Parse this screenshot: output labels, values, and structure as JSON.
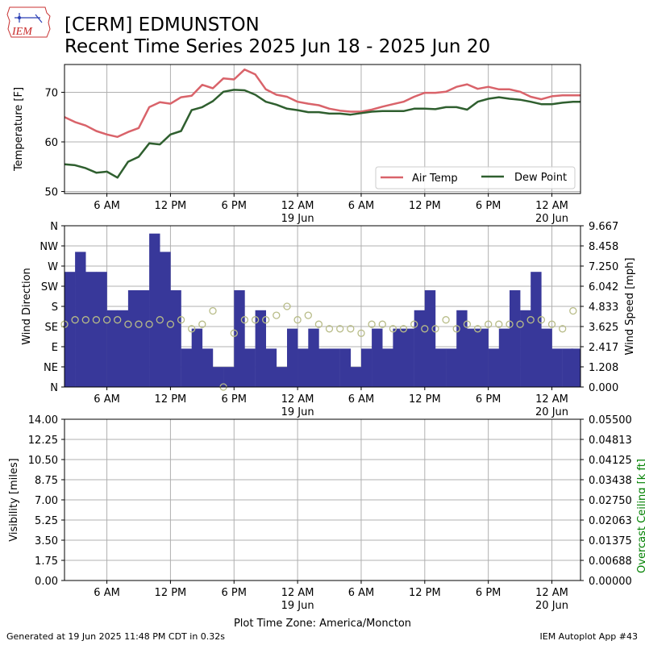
{
  "title_line1": "[CERM] EDMUNSTON",
  "title_line2": "Recent Time Series 2025 Jun 18 - 2025 Jun 20",
  "logo_text": "IEM",
  "footer_left": "Generated at 19 Jun 2025 11:48 PM CDT in 0.32s",
  "footer_right": "IEM Autoplot App #43",
  "colors": {
    "air_temp": "#d9636a",
    "dew_point": "#2f5f2f",
    "wind_speed_bar": "#38389a",
    "wind_dir_marker": "#b8bc88",
    "ceiling_label": "#008000",
    "grid": "#b0b0b0"
  },
  "chart_data": [
    {
      "type": "line",
      "ylabel": "Temperature [F]",
      "ylim": [
        49.6,
        75.6
      ],
      "yticks": [
        "50",
        "60",
        "70"
      ],
      "xticks": [
        "6 AM",
        "12 PM",
        "6 PM",
        "12 AM",
        "6 AM",
        "12 PM",
        "6 PM",
        "12 AM"
      ],
      "xtick_sublabels": [
        "",
        "",
        "",
        "19 Jun",
        "",
        "",
        "",
        "20 Jun"
      ],
      "x_unit": "hours after 2025-06-18 00:00",
      "xlim": [
        2.0,
        50.7
      ],
      "grid": true,
      "legend_position": "lower-right",
      "series": [
        {
          "name": "Air Temp",
          "x": [
            2,
            3,
            4,
            5,
            6,
            7,
            8,
            9,
            10,
            11,
            12,
            13,
            14,
            15,
            16,
            17,
            18,
            19,
            20,
            21,
            22,
            23,
            24,
            25,
            26,
            27,
            28,
            29,
            30,
            31,
            32,
            33,
            34,
            35,
            36,
            37,
            38,
            39,
            40,
            41,
            42,
            43,
            44,
            45,
            46,
            47,
            48,
            49,
            50,
            50.7
          ],
          "values": [
            65,
            64,
            63.3,
            62.2,
            61.5,
            61,
            62,
            62.8,
            67,
            68,
            67.7,
            69,
            69.3,
            71.5,
            70.8,
            72.8,
            72.6,
            74.6,
            73.6,
            70.6,
            69.5,
            69.1,
            68.1,
            67.7,
            67.4,
            66.7,
            66.3,
            66.1,
            66.1,
            66.5,
            67.1,
            67.6,
            68.1,
            69.1,
            69.9,
            69.9,
            70.1,
            71.1,
            71.6,
            70.7,
            71.1,
            70.6,
            70.6,
            70.1,
            69.1,
            68.6,
            69.2,
            69.4,
            69.4,
            69.4
          ]
        },
        {
          "name": "Dew Point",
          "x": [
            2,
            3,
            4,
            5,
            6,
            7,
            8,
            9,
            10,
            11,
            12,
            13,
            14,
            15,
            16,
            17,
            18,
            19,
            20,
            21,
            22,
            23,
            24,
            25,
            26,
            27,
            28,
            29,
            30,
            31,
            32,
            33,
            34,
            35,
            36,
            37,
            38,
            39,
            40,
            41,
            42,
            43,
            44,
            45,
            46,
            47,
            48,
            49,
            50,
            50.7
          ],
          "values": [
            55.5,
            55.3,
            54.7,
            53.8,
            54,
            52.8,
            56,
            57,
            59.7,
            59.5,
            61.5,
            62.2,
            66.4,
            67,
            68.2,
            70.1,
            70.5,
            70.4,
            69.5,
            68.1,
            67.5,
            66.7,
            66.4,
            66,
            66,
            65.7,
            65.7,
            65.5,
            65.8,
            66.1,
            66.2,
            66.2,
            66.2,
            66.7,
            66.7,
            66.6,
            67,
            67,
            66.5,
            68.1,
            68.7,
            69,
            68.7,
            68.5,
            68.1,
            67.6,
            67.6,
            67.9,
            68.1,
            68.1
          ]
        }
      ]
    },
    {
      "type": "bar",
      "ylabel": "Wind Direction",
      "y2label": "Wind Speed [mph]",
      "yticks": [
        "N",
        "NE",
        "E",
        "SE",
        "S",
        "SW",
        "W",
        "NW",
        "N"
      ],
      "y2ticks": [
        "0.000",
        "1.208",
        "2.417",
        "3.625",
        "4.833",
        "6.042",
        "7.250",
        "8.458",
        "9.667"
      ],
      "y2lim": [
        0,
        9.667
      ],
      "xticks": [
        "6 AM",
        "12 PM",
        "6 PM",
        "12 AM",
        "6 AM",
        "12 PM",
        "6 PM",
        "12 AM"
      ],
      "xtick_sublabels": [
        "",
        "",
        "",
        "19 Jun",
        "",
        "",
        "",
        "20 Jun"
      ],
      "grid": true,
      "series": [
        {
          "name": "Wind Speed",
          "x": [
            2.5,
            3.5,
            4.5,
            5.5,
            6.5,
            7.5,
            8.5,
            9.5,
            10.5,
            11.5,
            12.5,
            13.5,
            14.5,
            15.5,
            16.5,
            17.5,
            18.5,
            19.5,
            20.5,
            21.5,
            22.5,
            23.5,
            24.5,
            25.5,
            26.5,
            27.5,
            28.5,
            29.5,
            30.5,
            31.5,
            32.5,
            33.5,
            34.5,
            35.5,
            36.5,
            37.5,
            38.5,
            39.5,
            40.5,
            41.5,
            42.5,
            43.5,
            44.5,
            45.5,
            46.5,
            47.5,
            48.5,
            49.5,
            50.3
          ],
          "values": [
            6.9,
            8.1,
            6.9,
            6.9,
            4.6,
            4.6,
            5.8,
            5.8,
            9.2,
            8.1,
            5.8,
            2.3,
            3.5,
            2.3,
            1.2,
            1.2,
            5.8,
            2.3,
            4.6,
            2.3,
            1.2,
            3.5,
            2.3,
            3.5,
            2.3,
            2.3,
            2.3,
            1.2,
            2.3,
            3.5,
            2.3,
            3.5,
            3.5,
            4.6,
            5.8,
            2.3,
            2.3,
            4.6,
            3.5,
            3.5,
            2.3,
            3.5,
            5.8,
            4.6,
            6.9,
            3.5,
            2.3,
            2.3,
            2.3
          ]
        },
        {
          "name": "Wind Direction",
          "units": "degrees",
          "x": [
            2,
            3,
            4,
            5,
            6,
            7,
            8,
            9,
            10,
            11,
            12,
            13,
            14,
            15,
            16,
            17,
            18,
            19,
            20,
            21,
            22,
            23,
            24,
            25,
            26,
            27,
            28,
            29,
            30,
            31,
            32,
            33,
            34,
            35,
            36,
            37,
            38,
            39,
            40,
            41,
            42,
            43,
            44,
            45,
            46,
            47,
            48,
            49,
            50
          ],
          "values": [
            140,
            150,
            150,
            150,
            150,
            150,
            140,
            140,
            140,
            150,
            140,
            150,
            130,
            140,
            170,
            0,
            120,
            150,
            150,
            150,
            160,
            180,
            150,
            160,
            140,
            130,
            130,
            130,
            120,
            140,
            140,
            130,
            130,
            140,
            130,
            130,
            150,
            130,
            140,
            130,
            140,
            140,
            140,
            140,
            150,
            150,
            140,
            130,
            170
          ]
        }
      ]
    },
    {
      "type": "line",
      "ylabel": "Visibility [miles]",
      "y2label": "Overcast Ceiling [k ft]",
      "yticks": [
        "0.00",
        "1.75",
        "3.50",
        "5.25",
        "7.00",
        "8.75",
        "10.50",
        "12.25",
        "14.00"
      ],
      "y2ticks": [
        "0.00000",
        "0.00688",
        "0.01375",
        "0.02063",
        "0.02750",
        "0.03438",
        "0.04125",
        "0.04813",
        "0.05500"
      ],
      "ylim": [
        0,
        14
      ],
      "y2lim": [
        0,
        0.055
      ],
      "xticks": [
        "6 AM",
        "12 PM",
        "6 PM",
        "12 AM",
        "6 AM",
        "12 PM",
        "6 PM",
        "12 AM"
      ],
      "xtick_sublabels": [
        "",
        "",
        "",
        "19 Jun",
        "",
        "",
        "",
        "20 Jun"
      ],
      "xlabel": "Plot Time Zone: America/Moncton",
      "grid": true
    }
  ]
}
